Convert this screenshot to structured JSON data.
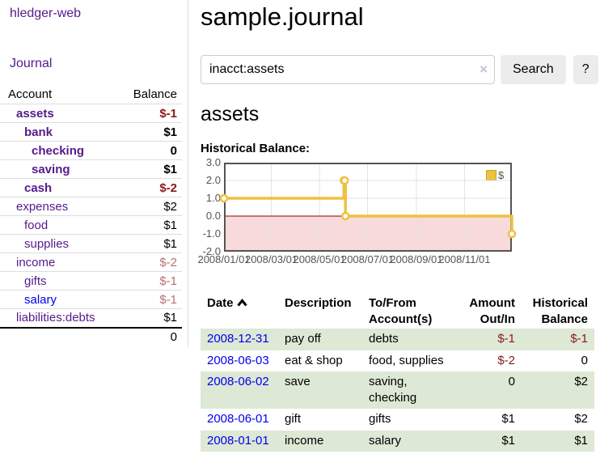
{
  "colors": {
    "purple_link": "#551A8B",
    "blue_link": "#0000EE",
    "negative_strong": "#8B1A1A",
    "negative_soft": "#B5716F",
    "row_stripe_green": "#DDE8D5",
    "button_gray": "#ECECEC",
    "chart_line_yellow": "#EDC240",
    "chart_negative_region": "#F9DADA",
    "chart_zero_line": "#8B0000",
    "chart_border": "#545454"
  },
  "sidebar": {
    "brand": "hledger-web",
    "nav_journal": "Journal",
    "header": {
      "account": "Account",
      "balance": "Balance"
    },
    "rows": [
      {
        "account": "assets",
        "balance": "$-1",
        "level": 1,
        "bold": true,
        "negative": "strong"
      },
      {
        "account": "bank",
        "balance": "$1",
        "level": 2,
        "bold": true
      },
      {
        "account": "checking",
        "balance": "0",
        "level": 3,
        "bold": true
      },
      {
        "account": "saving",
        "balance": "$1",
        "level": 3,
        "bold": true
      },
      {
        "account": "cash",
        "balance": "$-2",
        "level": 2,
        "bold": true,
        "negative": "strong"
      },
      {
        "account": "expenses",
        "balance": "$2",
        "level": 1
      },
      {
        "account": "food",
        "balance": "$1",
        "level": 2
      },
      {
        "account": "supplies",
        "balance": "$1",
        "level": 2
      },
      {
        "account": "income",
        "balance": "$-2",
        "level": 1,
        "negative": "soft"
      },
      {
        "account": "gifts",
        "balance": "$-1",
        "level": 2,
        "negative": "soft"
      },
      {
        "account": "salary",
        "balance": "$-1",
        "level": 2,
        "negative": "soft",
        "blue": true
      },
      {
        "account": "liabilities:debts",
        "balance": "$1",
        "level": 1
      }
    ],
    "total": "0"
  },
  "main": {
    "title": "sample.journal",
    "search": {
      "value": "inacct:assets",
      "clear_icon": "×",
      "search_button": "Search",
      "help_button": "?"
    },
    "account_heading": "assets",
    "chart_label": "Historical Balance:"
  },
  "chart_data": {
    "type": "line",
    "title": "Historical Balance",
    "style": "steps",
    "legend": {
      "label": "$",
      "position": "top-right"
    },
    "ylim": [
      -2,
      3
    ],
    "xlim_days": [
      0,
      365
    ],
    "y_ticks": [
      "3.0",
      "2.0",
      "1.0",
      "0.0",
      "-1.0",
      "-2.0"
    ],
    "x_ticks": [
      {
        "label": "2008/01/01",
        "day": 0
      },
      {
        "label": "2008/03/01",
        "day": 60
      },
      {
        "label": "2008/05/01",
        "day": 121
      },
      {
        "label": "2008/07/01",
        "day": 182
      },
      {
        "label": "2008/09/01",
        "day": 244
      },
      {
        "label": "2008/11/01",
        "day": 305
      }
    ],
    "series": [
      {
        "name": "$",
        "color": "#EDC240",
        "points": [
          {
            "date": "2008-01-01",
            "day": 0,
            "value": 1
          },
          {
            "date": "2008-06-01",
            "day": 152,
            "value": 2
          },
          {
            "date": "2008-06-02",
            "day": 153,
            "value": 2
          },
          {
            "date": "2008-06-03",
            "day": 154,
            "value": 0
          },
          {
            "date": "2008-12-31",
            "day": 365,
            "value": -1
          }
        ]
      }
    ],
    "grid": true,
    "negative_region": true
  },
  "register": {
    "headers": {
      "date": "Date",
      "description": "Description",
      "accounts": "To/From Account(s)",
      "amount": "Amount Out/In",
      "balance": "Historical Balance"
    },
    "rows": [
      {
        "date": "2008-12-31",
        "description": "pay off",
        "accounts": "debts",
        "amount": "$-1",
        "balance": "$-1",
        "amount_negative": true,
        "balance_negative": true
      },
      {
        "date": "2008-06-03",
        "description": "eat & shop",
        "accounts": "food, supplies",
        "amount": "$-2",
        "balance": "0",
        "amount_negative": true
      },
      {
        "date": "2008-06-02",
        "description": "save",
        "accounts": "saving, checking",
        "amount": "0",
        "balance": "$2"
      },
      {
        "date": "2008-06-01",
        "description": "gift",
        "accounts": "gifts",
        "amount": "$1",
        "balance": "$2"
      },
      {
        "date": "2008-01-01",
        "description": "income",
        "accounts": "salary",
        "amount": "$1",
        "balance": "$1"
      }
    ]
  }
}
